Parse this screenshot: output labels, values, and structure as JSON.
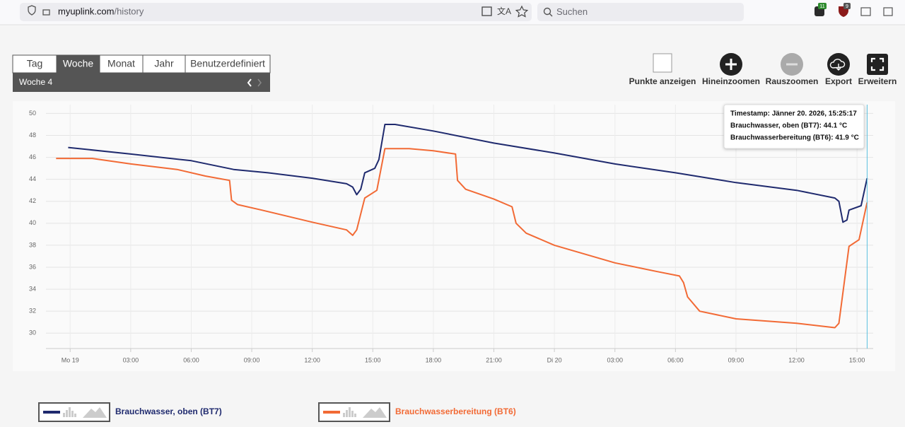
{
  "browser": {
    "url_host": "myuplink.com",
    "url_path": "/history",
    "search": "Suchen",
    "badges": [
      "11",
      "9"
    ]
  },
  "toolbar": {
    "tabs": [
      {
        "label": "Tag"
      },
      {
        "label": "Woche",
        "active": true
      },
      {
        "label": "Monat"
      },
      {
        "label": "Jahr"
      },
      {
        "label": "Benutzerdefiniert"
      }
    ],
    "period": "Woche  4",
    "buttons": [
      "Punkte anzeigen",
      "Hineinzoomen",
      "Rauszoomen",
      "Export",
      "Erweitern"
    ]
  },
  "chart_data": {
    "type": "line",
    "xlim": [
      -1.2,
      39.8
    ],
    "ylim": [
      28.6,
      50.8
    ],
    "xticks": [
      {
        "value": 0,
        "label": "Mo 19"
      },
      {
        "value": 3,
        "label": "03:00"
      },
      {
        "value": 6,
        "label": "06:00"
      },
      {
        "value": 9,
        "label": "09:00"
      },
      {
        "value": 12,
        "label": "12:00"
      },
      {
        "value": 15,
        "label": "15:00"
      },
      {
        "value": 18,
        "label": "18:00"
      },
      {
        "value": 21,
        "label": "21:00"
      },
      {
        "value": 24,
        "label": "Di 20"
      },
      {
        "value": 27,
        "label": "03:00"
      },
      {
        "value": 30,
        "label": "06:00"
      },
      {
        "value": 33,
        "label": "09:00"
      },
      {
        "value": 36,
        "label": "12:00"
      },
      {
        "value": 39,
        "label": "15:00"
      }
    ],
    "yticks": [
      30,
      32,
      34,
      36,
      38,
      40,
      42,
      44,
      46,
      48,
      50
    ],
    "grid": true,
    "series": [
      {
        "name": "Brauchwasser, oben (BT7)",
        "color": "#1f2a6e",
        "x": [
          -0.1,
          3.0,
          6.0,
          8.1,
          9.8,
          12.0,
          13.7,
          14.0,
          14.2,
          14.4,
          14.6,
          15.1,
          15.3,
          15.6,
          16.1,
          18.0,
          21.0,
          24.0,
          27.0,
          30.0,
          33.0,
          36.0,
          37.9,
          38.1,
          38.3,
          38.5,
          38.6,
          39.2,
          39.5
        ],
        "values": [
          46.9,
          46.3,
          45.7,
          44.9,
          44.6,
          44.1,
          43.6,
          43.3,
          42.6,
          43.1,
          44.6,
          45.0,
          45.8,
          49.0,
          49.0,
          48.4,
          47.3,
          46.4,
          45.4,
          44.6,
          43.7,
          43.0,
          42.3,
          42.0,
          40.1,
          40.3,
          41.2,
          41.6,
          44.1
        ]
      },
      {
        "name": "Brauchwasserbereitung (BT6)",
        "color": "#f26a35",
        "x": [
          -0.7,
          1.1,
          3.0,
          5.3,
          6.7,
          7.9,
          8.0,
          8.3,
          9.5,
          12.0,
          13.7,
          14.0,
          14.2,
          14.6,
          15.2,
          15.6,
          16.8,
          18.0,
          19.1,
          19.2,
          19.6,
          21.0,
          21.9,
          22.1,
          22.6,
          24.0,
          27.0,
          29.1,
          30.2,
          30.4,
          30.6,
          31.2,
          33.0,
          36.0,
          37.9,
          38.1,
          38.6,
          39.1,
          39.5
        ],
        "values": [
          45.9,
          45.9,
          45.4,
          44.9,
          44.3,
          43.9,
          42.1,
          41.7,
          41.2,
          40.1,
          39.4,
          38.9,
          39.4,
          42.3,
          43.0,
          46.8,
          46.8,
          46.6,
          46.3,
          43.9,
          43.1,
          42.2,
          41.5,
          40.0,
          39.1,
          38.0,
          36.4,
          35.6,
          35.2,
          34.6,
          33.3,
          32.0,
          31.3,
          30.9,
          30.5,
          30.9,
          37.9,
          38.5,
          41.9
        ]
      }
    ],
    "tooltip": [
      "Timestamp: Jänner 20. 2026, 15:25:17",
      "Brauchwasser, oben (BT7): 44.1 °C",
      "Brauchwasserbereitung (BT6): 41.9 °C"
    ]
  }
}
